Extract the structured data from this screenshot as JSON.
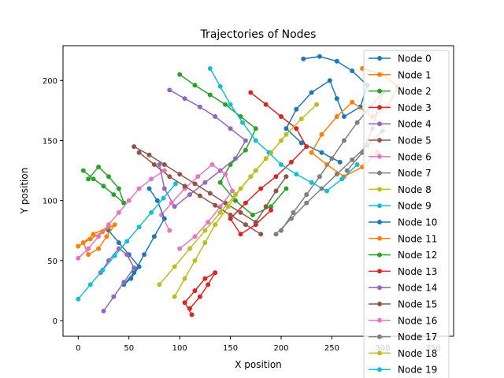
{
  "chart_data": {
    "type": "line",
    "title": "Trajectories of Nodes",
    "xlabel": "X position",
    "ylabel": "Y position",
    "xlim": [
      -15,
      370
    ],
    "ylim": [
      -13,
      229
    ],
    "xticks": [
      0,
      50,
      100,
      150,
      200,
      250,
      300,
      350
    ],
    "yticks": [
      0,
      50,
      100,
      150,
      200
    ],
    "grid": false,
    "legend_position": "top-right",
    "series": [
      {
        "name": "Node 0",
        "color": "#1f77b4",
        "points": [
          [
            222,
            218
          ],
          [
            238,
            220
          ],
          [
            255,
            216
          ],
          [
            270,
            208
          ],
          [
            285,
            196
          ],
          [
            278,
            178
          ],
          [
            262,
            170
          ],
          [
            255,
            185
          ],
          [
            248,
            200
          ],
          [
            230,
            190
          ],
          [
            215,
            176
          ],
          [
            205,
            160
          ],
          [
            220,
            148
          ],
          [
            240,
            140
          ],
          [
            258,
            132
          ]
        ]
      },
      {
        "name": "Node 1",
        "color": "#ff7f0e",
        "points": [
          [
            280,
            210
          ],
          [
            300,
            205
          ],
          [
            315,
            195
          ],
          [
            305,
            178
          ],
          [
            290,
            170
          ],
          [
            270,
            182
          ],
          [
            255,
            170
          ],
          [
            240,
            155
          ],
          [
            230,
            140
          ],
          [
            245,
            130
          ],
          [
            262,
            120
          ],
          [
            280,
            128
          ],
          [
            295,
            140
          ]
        ]
      },
      {
        "name": "Node 2",
        "color": "#2ca02c",
        "points": [
          [
            100,
            205
          ],
          [
            115,
            196
          ],
          [
            130,
            188
          ],
          [
            145,
            180
          ],
          [
            160,
            170
          ],
          [
            175,
            160
          ],
          [
            165,
            142
          ],
          [
            150,
            130
          ],
          [
            140,
            115
          ],
          [
            155,
            100
          ],
          [
            172,
            88
          ],
          [
            190,
            95
          ],
          [
            205,
            110
          ]
        ]
      },
      {
        "name": "Node 3",
        "color": "#d62728",
        "points": [
          [
            170,
            190
          ],
          [
            185,
            180
          ],
          [
            200,
            170
          ],
          [
            215,
            160
          ],
          [
            225,
            145
          ],
          [
            210,
            132
          ],
          [
            195,
            120
          ],
          [
            180,
            110
          ],
          [
            165,
            98
          ],
          [
            150,
            85
          ],
          [
            160,
            72
          ],
          [
            175,
            80
          ],
          [
            190,
            92
          ]
        ]
      },
      {
        "name": "Node 4",
        "color": "#9467bd",
        "points": [
          [
            90,
            192
          ],
          [
            105,
            185
          ],
          [
            120,
            178
          ],
          [
            135,
            170
          ],
          [
            150,
            160
          ],
          [
            165,
            150
          ],
          [
            155,
            135
          ],
          [
            140,
            125
          ],
          [
            125,
            115
          ],
          [
            110,
            105
          ],
          [
            95,
            95
          ],
          [
            85,
            110
          ],
          [
            80,
            130
          ]
        ]
      },
      {
        "name": "Node 5",
        "color": "#8c564b",
        "points": [
          [
            55,
            145
          ],
          [
            70,
            138
          ],
          [
            85,
            130
          ],
          [
            100,
            122
          ],
          [
            115,
            114
          ],
          [
            130,
            106
          ],
          [
            145,
            98
          ],
          [
            160,
            90
          ],
          [
            175,
            82
          ],
          [
            185,
            95
          ],
          [
            195,
            108
          ],
          [
            205,
            120
          ]
        ]
      },
      {
        "name": "Node 6",
        "color": "#e377c2",
        "points": [
          [
            100,
            60
          ],
          [
            115,
            70
          ],
          [
            128,
            82
          ],
          [
            140,
            95
          ],
          [
            152,
            108
          ],
          [
            145,
            122
          ],
          [
            132,
            130
          ],
          [
            118,
            120
          ],
          [
            105,
            110
          ],
          [
            92,
            98
          ],
          [
            82,
            88
          ],
          [
            90,
            75
          ]
        ]
      },
      {
        "name": "Node 7",
        "color": "#7f7f7f",
        "points": [
          [
            200,
            75
          ],
          [
            212,
            90
          ],
          [
            225,
            105
          ],
          [
            238,
            120
          ],
          [
            250,
            135
          ],
          [
            262,
            150
          ],
          [
            275,
            165
          ],
          [
            288,
            178
          ],
          [
            300,
            190
          ],
          [
            290,
            160
          ],
          [
            280,
            140
          ],
          [
            265,
            125
          ]
        ]
      },
      {
        "name": "Node 8",
        "color": "#bcbd22",
        "points": [
          [
            95,
            20
          ],
          [
            105,
            35
          ],
          [
            115,
            50
          ],
          [
            125,
            65
          ],
          [
            135,
            80
          ],
          [
            148,
            95
          ],
          [
            160,
            110
          ],
          [
            175,
            125
          ],
          [
            190,
            140
          ],
          [
            205,
            155
          ],
          [
            220,
            168
          ],
          [
            235,
            180
          ]
        ]
      },
      {
        "name": "Node 9",
        "color": "#17becf",
        "points": [
          [
            130,
            210
          ],
          [
            140,
            195
          ],
          [
            150,
            180
          ],
          [
            162,
            165
          ],
          [
            175,
            150
          ],
          [
            188,
            140
          ],
          [
            200,
            130
          ],
          [
            215,
            122
          ],
          [
            230,
            115
          ],
          [
            245,
            108
          ],
          [
            260,
            118
          ],
          [
            275,
            130
          ]
        ]
      },
      {
        "name": "Node 10",
        "color": "#1f77b4",
        "points": [
          [
            30,
            75
          ],
          [
            40,
            65
          ],
          [
            50,
            55
          ],
          [
            60,
            45
          ],
          [
            52,
            35
          ],
          [
            45,
            30
          ],
          [
            55,
            40
          ],
          [
            65,
            55
          ],
          [
            75,
            70
          ],
          [
            85,
            85
          ],
          [
            78,
            100
          ],
          [
            70,
            110
          ]
        ]
      },
      {
        "name": "Node 11",
        "color": "#ff7f0e",
        "points": [
          [
            0,
            62
          ],
          [
            12,
            68
          ],
          [
            24,
            74
          ],
          [
            36,
            80
          ],
          [
            28,
            70
          ],
          [
            20,
            60
          ],
          [
            10,
            55
          ],
          [
            5,
            65
          ],
          [
            15,
            72
          ],
          [
            30,
            78
          ]
        ]
      },
      {
        "name": "Node 12",
        "color": "#2ca02c",
        "points": [
          [
            5,
            125
          ],
          [
            15,
            118
          ],
          [
            25,
            112
          ],
          [
            35,
            105
          ],
          [
            45,
            98
          ],
          [
            40,
            110
          ],
          [
            30,
            120
          ],
          [
            20,
            128
          ],
          [
            10,
            118
          ]
        ]
      },
      {
        "name": "Node 13",
        "color": "#d62728",
        "points": [
          [
            110,
            10
          ],
          [
            120,
            20
          ],
          [
            128,
            30
          ],
          [
            135,
            40
          ],
          [
            125,
            35
          ],
          [
            115,
            25
          ],
          [
            105,
            15
          ],
          [
            112,
            5
          ]
        ]
      },
      {
        "name": "Node 14",
        "color": "#9467bd",
        "points": [
          [
            25,
            8
          ],
          [
            35,
            20
          ],
          [
            45,
            32
          ],
          [
            55,
            44
          ],
          [
            48,
            55
          ],
          [
            40,
            60
          ],
          [
            30,
            50
          ],
          [
            22,
            40
          ]
        ]
      },
      {
        "name": "Node 15",
        "color": "#8c564b",
        "points": [
          [
            60,
            140
          ],
          [
            75,
            130
          ],
          [
            90,
            120
          ],
          [
            105,
            112
          ],
          [
            120,
            104
          ],
          [
            135,
            96
          ],
          [
            150,
            88
          ],
          [
            165,
            80
          ],
          [
            180,
            72
          ]
        ]
      },
      {
        "name": "Node 16",
        "color": "#e377c2",
        "points": [
          [
            0,
            52
          ],
          [
            10,
            60
          ],
          [
            20,
            70
          ],
          [
            30,
            80
          ],
          [
            40,
            90
          ],
          [
            50,
            100
          ],
          [
            60,
            110
          ],
          [
            72,
            118
          ],
          [
            85,
            125
          ]
        ]
      },
      {
        "name": "Node 17",
        "color": "#7f7f7f",
        "points": [
          [
            195,
            72
          ],
          [
            210,
            85
          ],
          [
            225,
            98
          ],
          [
            240,
            110
          ],
          [
            255,
            122
          ],
          [
            270,
            134
          ],
          [
            285,
            146
          ],
          [
            300,
            158
          ]
        ]
      },
      {
        "name": "Node 18",
        "color": "#bcbd22",
        "points": [
          [
            80,
            30
          ],
          [
            95,
            45
          ],
          [
            110,
            60
          ],
          [
            125,
            75
          ],
          [
            140,
            90
          ],
          [
            155,
            105
          ],
          [
            170,
            120
          ],
          [
            185,
            135
          ],
          [
            200,
            150
          ]
        ]
      },
      {
        "name": "Node 19",
        "color": "#17becf",
        "points": [
          [
            0,
            18
          ],
          [
            12,
            30
          ],
          [
            24,
            42
          ],
          [
            36,
            54
          ],
          [
            48,
            66
          ],
          [
            60,
            78
          ],
          [
            72,
            90
          ],
          [
            84,
            102
          ],
          [
            96,
            114
          ]
        ]
      }
    ]
  }
}
